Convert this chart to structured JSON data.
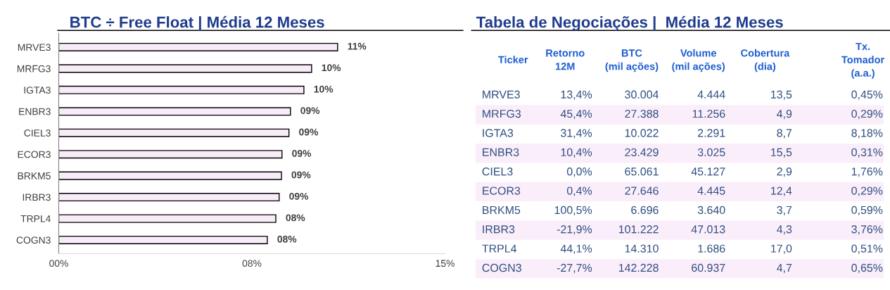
{
  "chart_data": [
    {
      "type": "bar",
      "orientation": "horizontal",
      "title": "BTC ÷ Free Float | Média 12 Meses",
      "categories": [
        "MRVE3",
        "MRFG3",
        "IGTA3",
        "ENBR3",
        "CIEL3",
        "ECOR3",
        "BRKM5",
        "IRBR3",
        "TRPL4",
        "COGN3"
      ],
      "values": [
        10.83,
        9.82,
        9.52,
        9.0,
        8.94,
        8.67,
        8.65,
        8.56,
        8.43,
        8.1
      ],
      "value_labels": [
        "11%",
        "10%",
        "10%",
        "09%",
        "09%",
        "09%",
        "09%",
        "09%",
        "08%",
        "08%"
      ],
      "color": "#f8ecf8",
      "xlim": [
        0,
        15
      ],
      "xticks": [
        {
          "value": 0,
          "label": "00%"
        },
        {
          "value": 7.5,
          "label": "08%"
        },
        {
          "value": 15,
          "label": "15%"
        }
      ],
      "grid": false,
      "legend": false
    },
    {
      "type": "other",
      "title": "Tabela de Negociações |  Média 12 Meses",
      "categories": [
        "Ticker",
        "Retorno\n12M",
        "BTC\n(mil ações)",
        "Volume\n(mil ações)",
        "Cobertura\n(dia)",
        "Tx.\nTomador\n(a.a.)"
      ],
      "y_categories": [
        "MRVE3",
        "MRFG3",
        "IGTA3",
        "ENBR3",
        "CIEL3",
        "ECOR3",
        "BRKM5",
        "IRBR3",
        "TRPL4",
        "COGN3"
      ],
      "cell_labels": [
        [
          "13,4%",
          "30.004",
          "4.444",
          "13,5",
          "0,45%"
        ],
        [
          "45,4%",
          "27.388",
          "11.256",
          "4,9",
          "0,29%"
        ],
        [
          "31,4%",
          "10.022",
          "2.291",
          "8,7",
          "8,18%"
        ],
        [
          "10,4%",
          "23.429",
          "3.025",
          "15,5",
          "0,31%"
        ],
        [
          "0,0%",
          "65.061",
          "45.127",
          "2,9",
          "1,76%"
        ],
        [
          "0,4%",
          "27.646",
          "4.445",
          "12,4",
          "0,29%"
        ],
        [
          "100,5%",
          "6.696",
          "3.640",
          "3,7",
          "0,59%"
        ],
        [
          "-21,9%",
          "101.222",
          "47.013",
          "4,3",
          "3,76%"
        ],
        [
          "44,1%",
          "14.310",
          "1.686",
          "17,0",
          "0,51%"
        ],
        [
          "-27,7%",
          "142.228",
          "60.937",
          "4,7",
          "0,65%"
        ]
      ]
    }
  ]
}
